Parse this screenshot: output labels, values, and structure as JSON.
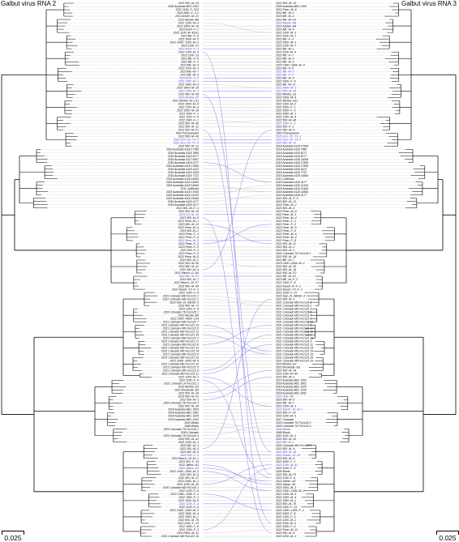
{
  "left_tree": {
    "title": "Galbut virus RNA 2",
    "scale_label": "0.025",
    "tips": [
      "2022 500--M--23",
      "2006 Australia ME1-2163",
      "2022 1100--F--S13",
      "2023 ADD--F--1-2",
      "2022 AUDH--M--21",
      "2022 AdGde--Bd",
      "2022 1200--M--3",
      "2023 1500--M--19",
      "2023 Ashh--F--1",
      "2022 1100--M--ES31",
      "2023 ME--F--5",
      "2022 1600--M--5",
      "2022 CWD--1305--M--1",
      "2023 1100--21",
      "2023 Penn--F--3",
      "2022 1100--M--3",
      "2023 1200--13",
      "2023 ME--F--5",
      "2022 ME--F--1",
      "2023 ME--M--4",
      "2022 1100--M--3",
      "2023 ME--M--7",
      "2022 ME--M--3",
      "2023 ADD--S--6",
      "2022 1400--M--1",
      "2022 1400--M--3",
      "2023 1400--M--25",
      "2022 1100--M--3",
      "2022 500--M--45",
      "2023 Mortha--Z5",
      "2021 Mortha--M--C11",
      "2023 1500--M--4",
      "2022 1100--M--3",
      "2023 1500--M--19",
      "2023 1500--F--1",
      "2022 1100--F--5",
      "2022 1600--F--1",
      "2022 500--M--46",
      "2022 500--M--11",
      "2022 500--M--F1",
      "1993 Pennsylvania",
      "2022 500--M--43",
      "2022 mcn--20--T3--3",
      "2022 mcn--20--T3--4",
      "2022 500--M--12",
      "2018 Australia 4118 17785",
      "2018 Australia 4118 7850",
      "2018 Australia 4118 8177",
      "2018 Australia 4117 8357",
      "2018 Australia 4118 4177",
      "2018 Australia 4118 17665",
      "2018 Australia 4118 4122",
      "2018 Australia 4118 3418",
      "2018 Australia 4118 7722",
      "2018 Australia 4118 14006",
      "2018 Australia 4118 14006",
      "2018 Australia 4118 14664",
      "2011 California",
      "2018 Australia 4118 17645",
      "2018 Australia 4118 21410",
      "2018 Australia 4118 21464",
      "2018 Australia 4118 4177",
      "2018 Australia 4118 4177",
      "2022 500--M--F--3",
      "2023 500--M--24",
      "2023 CH--M--16",
      "2022 500--M--8",
      "2022 Penn--M--1",
      "2023 500--M--11",
      "2022 Penn--M--4",
      "2023 500--M--2",
      "2023 Penn--F--1",
      "2022 Penn--F--4",
      "2022 Penn--M--6",
      "2022 Penn--F--3",
      "2023 Penn--F--5",
      "2022 500--F--1",
      "2023 Penn--F--5",
      "2023 Penn--M--8",
      "2023 500--M--2",
      "2022 500--M--50",
      "2022 ME--M--41",
      "2022 500--M--4",
      "2022 Raoch--G--K4",
      "2022 ME--M--51",
      "2023 500--M--7",
      "2022 Raoch--10--F7",
      "2023 500--M--45",
      "2022 Raoch--T3--F--3",
      "2022 1200--F--8",
      "2021 Colorado MD FoCo21 1",
      "2021 Colorado MD FoCo21 2",
      "2023 Hall--21--MES6--2",
      "2023 500--M--71",
      "2023 1200--F--4",
      "2020 Colorado TD FoCo20 1",
      "2022 AdGde--B6",
      "2022 CWD--4605--C14",
      "2021 Colorado MD FoCo21 7",
      "2021 Colorado MD FoCo21 19",
      "2021 Colorado MD FoCo21 6",
      "2021 Colorado MD FoCo21 12",
      "2021 Colorado MD FoCo21 15",
      "2021 Colorado MD FoCo21 3",
      "2021 Colorado MD FoCo21 17",
      "2021 Colorado MD FoCo21 8",
      "2021 Colorado MD FoCo21 13",
      "2021 Colorado MD FoCo21 14",
      "2021 Colorado MD FoCo21 4",
      "2021 Colorado MD FoCo21 10",
      "2022 CWD--1605--M--4",
      "2021 Colorado MD FoCo21 20",
      "2021 Colorado MD FoCo21 5",
      "2021 Colorado MD FoCo21 9",
      "2021 Colorado MD FoCo21 11",
      "2022 1200--M--1",
      "2022 1100--F--4",
      "2021 Colorado LA FoCo21 1",
      "2023 Mortha--E3",
      "2022 Brookside--E9",
      "2022 500--M--34",
      "2023 500--M--F2",
      "2022 500--M--1",
      "2020 Colorado TD FoCo20 1",
      "2022 500--M--34",
      "2018 Australia MEL 1503",
      "2018 Australia MEL 1802",
      "2018 Australia MEL 1625",
      "2018 Australia MEL 1910",
      "1930 Illinois",
      "1998 Illinois",
      "2020 Colorado TD FoCo20 2",
      "2018 Colorado",
      "2020 Colorado TD FoCo20 4",
      "2022 500--M--41",
      "2023 1200--M--1",
      "2022 ME--M--3",
      "2022 500--M--5",
      "2022 ME--M--5",
      "2023 500--F--3",
      "2023 Raoch--15--M--1",
      "2023 500--F--14",
      "2022 Jalesc--A1",
      "2022 Jalesc--A3",
      "2022 CWD--1306--M--2",
      "2022 500--M--5",
      "2022 500--M--17",
      "2022 CWD--M--2",
      "2022 1200--M--43",
      "2020 Colorado MD FoCo20 1",
      "2022 1100--F--5",
      "2022 CWD--1305--F--1",
      "2022 1500--F--1",
      "2022 1500--M--5",
      "2022 1100--F--4",
      "2022 1100--F--6",
      "2022 CWD--1305--M--3",
      "2022 1500--M--4",
      "2022 1500--M--2",
      "2022 500--M--76",
      "2022 1100--F--13",
      "2022 1500--F--8",
      "2022 1200--F--3",
      "2022 Penn--M--11",
      "2021 Colorado MD FoCo21 16"
    ]
  },
  "right_tree": {
    "title": "Galbut virus RNA 3",
    "scale_label": "0.025",
    "tips": [
      "2022 500--M--23",
      "2006 Australia ME1-2163",
      "2022 Penn--M--6",
      "2022 ME--M--2",
      "2023 ME--M--1",
      "2022 ME--M--14",
      "2022 AdGde--B4",
      "2022 AdGde--B4",
      "2023 ME--M--4",
      "2022 1200--M--3",
      "2022 1100--M--1",
      "2022 ME--F--3",
      "2022 1500--M--3",
      "2023 1100--M--7",
      "2022 ME--M--1",
      "2022 1100--M--4",
      "2022 ME--F--7",
      "2022 ME--M--5",
      "2022 ME--M--3",
      "2023 CWD--1604--M--4",
      "2022 ME--F--6",
      "2022 ME--M--5",
      "2022 ME--F--3",
      "2022 ME--M--4",
      "2022 1600--F--5",
      "2022 ME--M--11",
      "2022 1400--M--3",
      "2022 500--M--45",
      "2022 Mortha--S1",
      "2023 1500--M--4",
      "2021 Mortha--D11",
      "2022 1100--M--2",
      "2022 1500--F--1",
      "2022 1500--F--3",
      "2022 1600--M--1",
      "2022 1200--M--4",
      "2022 500--M--46",
      "2022 1600--F--1",
      "2022 500--F--1",
      "2022 500--M--4",
      "1993 Pennsylvania",
      "2022 mcn--20--T3--1",
      "2022 mcn--20--T3--4",
      "2022 500--M--15",
      "2018 Australia 4118 17645",
      "2018 Australia 4118 7850",
      "2018 Australia 4118 8177",
      "2018 Australia 4118 8177",
      "2018 Australia 4118 14006",
      "2018 Australia 4118 17665",
      "2018 Australia 4118 17665",
      "2018 Australia 4118 4122",
      "2018 Australia 4118 7722",
      "2018 Australia 4118 14664",
      "2011 California",
      "2018 Australia 4118 4177",
      "2018 Australia 4118 21410",
      "2018 Australia 4118 21464",
      "2018 Australia 4118 14664",
      "2018 Australia 4118 4177",
      "2022 500--M--F--3",
      "2023 500--M--21",
      "2022 Penn--M--2",
      "2023 500--M--6",
      "2023 Penn--M--4",
      "2022 Penn--M--1",
      "2023 Penn--M--4",
      "2022 Penn--F--1",
      "2022 Penn--F--3",
      "2023 Penn--M--5",
      "2022 Penn--F--5",
      "2022 Penn--M--6",
      "2023 Penn--M--4",
      "2022 Penn--F--8",
      "2023 500--M--11",
      "2022 500--M--2",
      "2023 500--M--3",
      "2022 Colorado TD FoCo20 1",
      "2022 500--M--14",
      "2022 ME--M--7",
      "2023 CWD--1604--M--2",
      "2022 500--M--50",
      "2022 500--M--24",
      "2022 500--M--F2",
      "2022 ME--M--10",
      "2023 ME--M--F--2",
      "2022 1200--F--8",
      "2022 Raoch--8--F--1",
      "2022 Raoch--T3--F--1",
      "2022 1200--F--27",
      "2022 Hall--21--MES6--3",
      "2022 500--M--5",
      "2021 Colorado MD FoCo21 1",
      "2021 Colorado MD FoCo21 2",
      "2021 Colorado MD FoCo21 3",
      "2021 Colorado MD FoCo21 5",
      "2021 Colorado MD FoCo21 7",
      "2021 Colorado MD FoCo21 6",
      "2021 Colorado MD FoCo21 12",
      "2021 Colorado MD FoCo21 8",
      "2021 Colorado MD FoCo21 17",
      "2021 Colorado MD FoCo21 10",
      "2021 Colorado MD FoCo21 9",
      "2021 Colorado MD FoCo21 13",
      "2021 Colorado MD FoCo21 4",
      "2021 Colorado MD FoCo21 11",
      "2021 Colorado MD FoCo21 14",
      "2021 Colorado MD FoCo21 19",
      "2021 Colorado MD FoCo21 15",
      "2021 Colorado MD FoCo21 20",
      "2021 Colorado MD FoCo21 16",
      "2023 Mortha--E3",
      "2022 Brookside--E9",
      "2022 500--M--34",
      "2022 1100--M--45",
      "2022 500--M--1",
      "2022 Australia MEL 1503",
      "2018 Australia MEL 1802",
      "2018 Australia MEL 1625",
      "2018 Australia MEL 1910",
      "2018 Australia MEL 2062",
      "2022 Ohio--A5",
      "2023 500--M--6",
      "2022 ME--M--1",
      "2022 1200--M--1",
      "2023 Raoch--15--M--1",
      "2023 500--F--14",
      "2022 1100--M--5",
      "2017 Colorado",
      "2020 Colorado TD FoCo20 2",
      "2020 Colorado TD FoCo20 4",
      "1930 Illinois",
      "1998 Illinois",
      "2022 1100--M--1",
      "2022 500--M--41",
      "2022 ME--M--1",
      "2020 Colorado MD FoCo20 1",
      "2022 500--M--4",
      "2022 500--M--45",
      "2022 Raoch--23--K1",
      "2022 500--M--5",
      "2022 1600--F--1",
      "2022 1200--M--43",
      "2022 1200--F--3",
      "1930 Illinois",
      "2022 500--M--F1",
      "2022 1100--F--4",
      "2022 Jalesc--A3",
      "2022 Jalesc--A1",
      "2022 1500--M--3",
      "2022 CWD--1306--M--2",
      "2022 1200--M--5",
      "2022 1500--M--4",
      "2022 1500--M--2",
      "2022 500--M--76",
      "2022 1100--F--13",
      "2022 CWD--1305--F--1",
      "2022 1500--F--8",
      "2022 1200--F--3",
      "2022 1200--M--2",
      "2022 1100--M--3",
      "2022 1500--F--6",
      "2022 Penn--M--11",
      "2022 500--M--8",
      "2022 1200--M--3"
    ]
  },
  "colors": {
    "branch": "#000000",
    "tip_text": "#000000",
    "highlight_text": "#3a3ad6",
    "tangle_highlight": "#5a5ae0",
    "tangle_normal": "#bdbdbd",
    "dotted": "#9a9a9a"
  },
  "highlighted_left": [
    14,
    23,
    24,
    27,
    29,
    42,
    43,
    65,
    73,
    84,
    139,
    143,
    154
  ],
  "highlighted_right": [
    6,
    21,
    22,
    26,
    27,
    37,
    41,
    42,
    43,
    121,
    125,
    131,
    135,
    138,
    139,
    142
  ]
}
